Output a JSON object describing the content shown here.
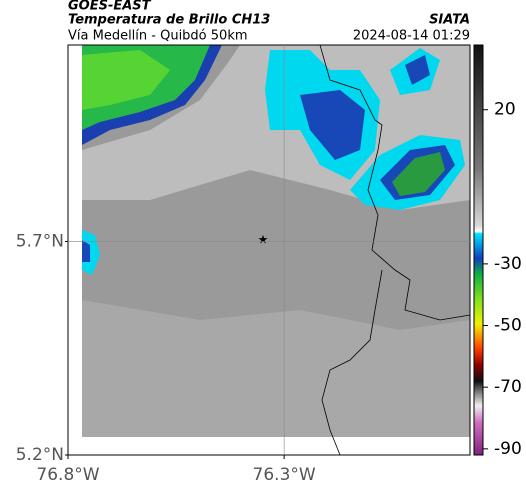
{
  "header": {
    "source": "GOES-EAST",
    "product": "Temperatura de Brillo CH13",
    "agency": "SIATA",
    "route": "Vía Medellín - Quibdó 50km",
    "datetime": "2024-08-14 01:29"
  },
  "map": {
    "lonlim": [
      -76.8,
      -75.87
    ],
    "latlim": [
      5.2,
      6.16
    ],
    "lonticks": [
      {
        "value": -76.8,
        "label": "76.8°W"
      },
      {
        "value": -76.3,
        "label": "76.3°W"
      }
    ],
    "latticks": [
      {
        "value": 5.2,
        "label": "5.2°N"
      },
      {
        "value": 5.7,
        "label": "5.7°N"
      }
    ],
    "grid": true
  },
  "colorbar": {
    "lim": [
      -92,
      41
    ],
    "ticks": [
      20,
      -30,
      -50,
      -70,
      -90
    ]
  }
}
